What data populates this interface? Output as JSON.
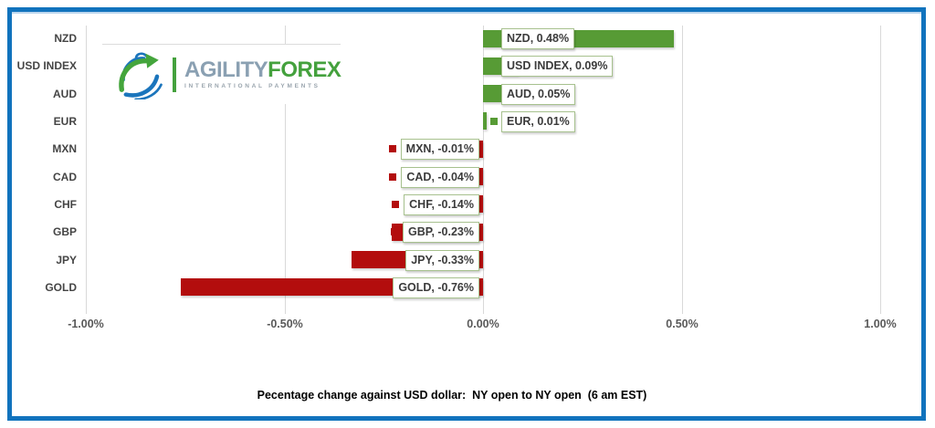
{
  "frame": {
    "border_color": "#1173BD"
  },
  "logo": {
    "brand_primary": "AGILITY",
    "brand_secondary": "FOREX",
    "tagline": "INTERNATIONAL PAYMENTS",
    "colors": {
      "primary_text": "#8AA0B2",
      "secondary_text": "#44A13D",
      "tagline_text": "#9AA5AE",
      "swirl_blue": "#1B75BC",
      "swirl_green": "#44A53C"
    }
  },
  "chart_data": {
    "type": "bar",
    "orientation": "horizontal",
    "categories": [
      "NZD",
      "USD INDEX",
      "AUD",
      "EUR",
      "MXN",
      "CAD",
      "CHF",
      "GBP",
      "JPY",
      "GOLD"
    ],
    "values": [
      0.48,
      0.09,
      0.05,
      0.01,
      -0.01,
      -0.04,
      -0.14,
      -0.23,
      -0.33,
      -0.76
    ],
    "data_labels": [
      "NZD, 0.48%",
      "USD INDEX, 0.09%",
      "AUD, 0.05%",
      "EUR, 0.01%",
      "MXN, -0.01%",
      "CAD, -0.04%",
      "CHF, -0.14%",
      "GBP, -0.23%",
      "JPY, -0.33%",
      "GOLD, -0.76%"
    ],
    "x_ticks": [
      "-1.00%",
      "-0.50%",
      "0.00%",
      "0.50%",
      "1.00%"
    ],
    "x_tick_values": [
      -1.0,
      -0.5,
      0.0,
      0.5,
      1.0
    ],
    "xlim": [
      -1.0,
      1.0
    ],
    "unit": "%",
    "title": "Pecentage change against USD dollar:  NY open to NY open  (6 am EST)",
    "grid": true,
    "legend": false,
    "show_legend_key_in_labels": true,
    "positive_color": "#579B35",
    "negative_color": "#B30D0D",
    "label_box_border_color": "#A7C18E",
    "gridline_color": "#D9D9D9",
    "axis_text_color": "#595959",
    "category_text_color": "#454545"
  }
}
